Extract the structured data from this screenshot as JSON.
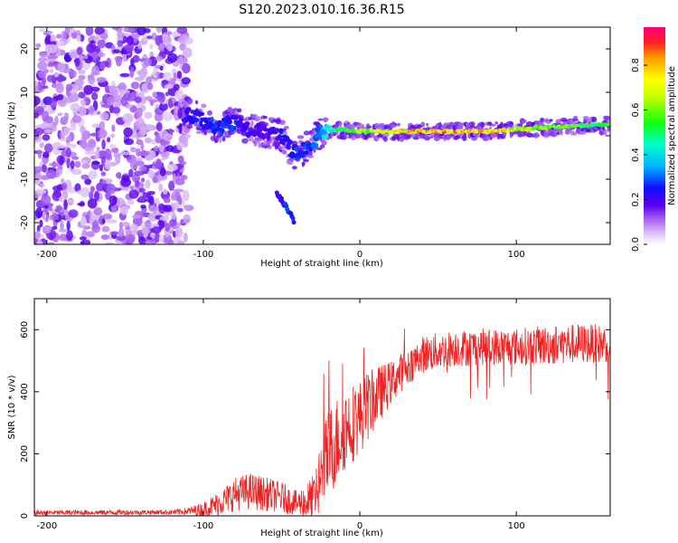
{
  "title": "S120.2023.010.16.36.R15",
  "chart_data": [
    {
      "type": "heatmap",
      "xlabel": "Height of straight line (km)",
      "ylabel": "Frequency (Hz)",
      "xlim": [
        -208,
        160
      ],
      "ylim": [
        -25,
        25
      ],
      "xticks": [
        "-200",
        "-100",
        "0",
        "100"
      ],
      "yticks": [
        "-20",
        "-10",
        "0",
        "10",
        "20"
      ],
      "colorbar": {
        "label": "Normalized spectral amplitude",
        "range": [
          0,
          0.97
        ],
        "ticks": [
          "0.0",
          "0.2",
          "0.4",
          "0.6",
          "0.8"
        ]
      },
      "features": [
        {
          "name": "noise",
          "x_range": [
            -208,
            -115
          ],
          "y_range": [
            -25,
            25
          ],
          "amplitude": 0.08
        },
        {
          "name": "main_track",
          "x": [
            -110,
            -90,
            -80,
            -70,
            -60,
            -50,
            -42,
            -35,
            -25,
            -15,
            0,
            40,
            80,
            120,
            160
          ],
          "y": [
            5,
            2,
            3,
            1.5,
            1,
            0,
            -4,
            -3,
            0.5,
            1.5,
            1,
            1,
            1,
            2,
            2.5
          ],
          "amplitude": [
            0.25,
            0.3,
            0.3,
            0.2,
            0.2,
            0.25,
            0.3,
            0.3,
            0.4,
            0.55,
            0.7,
            0.9,
            0.85,
            0.7,
            0.6
          ]
        },
        {
          "name": "branch",
          "x": [
            -53,
            -46,
            -42
          ],
          "y": [
            -13,
            -17,
            -20
          ],
          "amplitude": [
            0.2,
            0.3,
            0.25
          ]
        }
      ]
    },
    {
      "type": "line",
      "xlabel": "Height of straight line (km)",
      "ylabel": "SNR (10 * v/v)",
      "xlim": [
        -208,
        160
      ],
      "ylim": [
        0,
        700
      ],
      "xticks": [
        "-200",
        "-100",
        "0",
        "100"
      ],
      "yticks": [
        "0",
        "200",
        "400",
        "600"
      ],
      "series": [
        {
          "color": "#ee2222",
          "envelope": {
            "x": [
              -208,
              -120,
              -110,
              -100,
              -90,
              -80,
              -70,
              -60,
              -50,
              -40,
              -30,
              -20,
              -10,
              0,
              10,
              20,
              30,
              40,
              60,
              80,
              100,
              120,
              140,
              160
            ],
            "base": [
              10,
              12,
              15,
              20,
              40,
              70,
              80,
              70,
              60,
              40,
              50,
              200,
              280,
              320,
              380,
              430,
              480,
              520,
              540,
              545,
              545,
              550,
              555,
              555
            ],
            "spread": [
              8,
              8,
              12,
              25,
              40,
              55,
              60,
              55,
              50,
              40,
              80,
              150,
              140,
              120,
              100,
              70,
              60,
              60,
              60,
              60,
              60,
              65,
              65,
              60
            ]
          }
        }
      ]
    }
  ]
}
